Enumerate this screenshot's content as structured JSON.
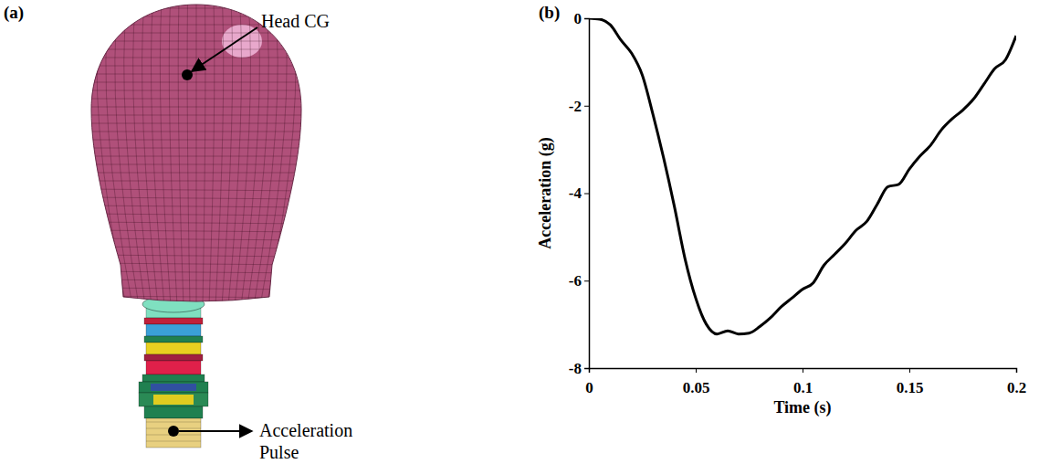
{
  "chart_data": {
    "type": "line",
    "panel": "(b)",
    "x": [
      0,
      0.005,
      0.01,
      0.015,
      0.02,
      0.025,
      0.03,
      0.035,
      0.04,
      0.045,
      0.05,
      0.055,
      0.06,
      0.065,
      0.07,
      0.075,
      0.08,
      0.085,
      0.09,
      0.095,
      0.1,
      0.105,
      0.11,
      0.115,
      0.12,
      0.125,
      0.13,
      0.135,
      0.14,
      0.145,
      0.15,
      0.155,
      0.16,
      0.165,
      0.17,
      0.175,
      0.18,
      0.185,
      0.19,
      0.195,
      0.2
    ],
    "values": [
      0,
      -0.02,
      -0.15,
      -0.5,
      -0.8,
      -1.3,
      -2.2,
      -3.2,
      -4.3,
      -5.5,
      -6.4,
      -7.0,
      -7.22,
      -7.15,
      -7.22,
      -7.2,
      -7.05,
      -6.85,
      -6.6,
      -6.4,
      -6.2,
      -6.05,
      -5.65,
      -5.4,
      -5.15,
      -4.85,
      -4.65,
      -4.25,
      -3.85,
      -3.8,
      -3.45,
      -3.15,
      -2.9,
      -2.55,
      -2.3,
      -2.1,
      -1.85,
      -1.5,
      -1.15,
      -0.95,
      -0.4
    ],
    "color": "#000000",
    "xlabel": "Time (s)",
    "ylabel": "Acceleration (g)",
    "xlim": [
      0,
      0.2
    ],
    "ylim": [
      -8,
      0
    ],
    "xticks": [
      0,
      0.05,
      0.1,
      0.15,
      0.2
    ],
    "yticks": [
      0,
      -2,
      -4,
      -6,
      -8
    ],
    "grid": false
  },
  "diagram": {
    "panel": "(a)",
    "annotations": [
      "Head CG",
      "Acceleration Pulse"
    ]
  }
}
